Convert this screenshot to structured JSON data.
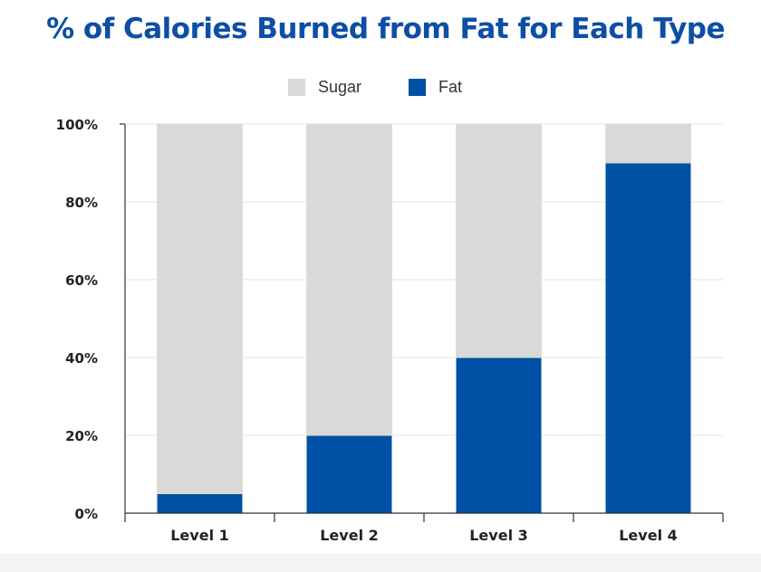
{
  "chart_data": {
    "type": "bar",
    "stacked": true,
    "title": "% of Calories Burned from Fat for Each Type",
    "categories": [
      "Level 1",
      "Level 2",
      "Level 3",
      "Level 4"
    ],
    "series": [
      {
        "name": "Fat",
        "values": [
          5,
          20,
          40,
          90
        ],
        "color": "#0050a5"
      },
      {
        "name": "Sugar",
        "values": [
          95,
          80,
          60,
          10
        ],
        "color": "#d9d9d9"
      }
    ],
    "legend": [
      {
        "name": "Sugar",
        "color": "#d9d9d9"
      },
      {
        "name": "Fat",
        "color": "#0050a5"
      }
    ],
    "legend_position": "top-center",
    "ylim": [
      0,
      100
    ],
    "yticks": [
      "0%",
      "20%",
      "40%",
      "60%",
      "80%",
      "100%"
    ],
    "ytick_values": [
      0,
      20,
      40,
      60,
      80,
      100
    ],
    "grid": true,
    "colors": {
      "title": "#0d4ea6",
      "fat": "#0050a5",
      "sugar": "#d9d9d9",
      "bar_edge": "#e4dcc4",
      "grid": "#e6e6e6",
      "axis": "#333333"
    }
  }
}
